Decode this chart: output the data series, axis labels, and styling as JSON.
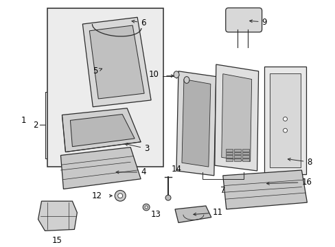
{
  "background_color": "#ffffff",
  "line_color": "#2a2a2a",
  "fig_width": 4.89,
  "fig_height": 3.6,
  "dpi": 100,
  "label_fontsize": 8.5,
  "box_bg": "#e8e8e8",
  "white": "#ffffff",
  "gray1": "#cccccc",
  "gray2": "#b0b0b0",
  "gray3": "#888888"
}
